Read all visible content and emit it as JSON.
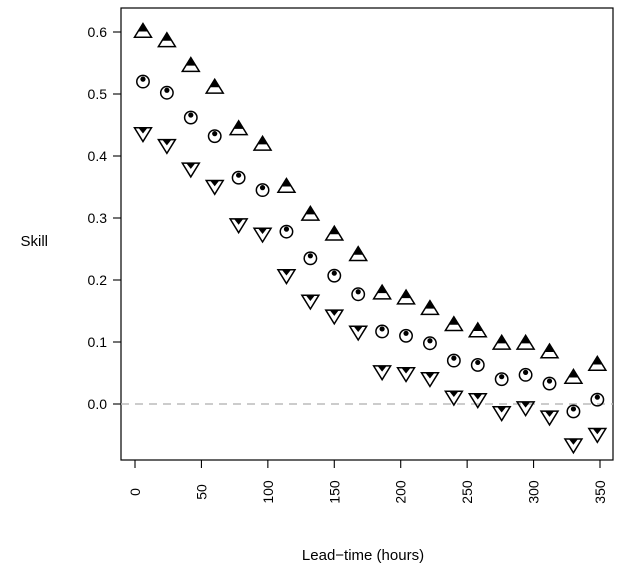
{
  "chart_data": {
    "type": "scatter",
    "xlabel": "Lead−time (hours)",
    "ylabel": "Skill",
    "xlim": [
      -5,
      360
    ],
    "ylim": [
      -0.09,
      0.62
    ],
    "x_ticks": [
      0,
      50,
      100,
      150,
      200,
      250,
      300,
      350
    ],
    "x_tick_labels": [
      "0",
      "50",
      "100",
      "150",
      "200",
      "250",
      "300",
      "350"
    ],
    "y_ticks": [
      0.0,
      0.1,
      0.2,
      0.3,
      0.4,
      0.5,
      0.6
    ],
    "y_tick_labels": [
      "0.0",
      "0.1",
      "0.2",
      "0.3",
      "0.4",
      "0.5",
      "0.6"
    ],
    "reference_line": {
      "y": 0.0,
      "style": "dashed",
      "color": "#bbbbbb"
    },
    "x": [
      6,
      24,
      42,
      60,
      78,
      96,
      114,
      132,
      150,
      168,
      186,
      204,
      222,
      240,
      258,
      276,
      294,
      312,
      330,
      348
    ],
    "series": [
      {
        "marker": "triangle-up",
        "values": [
          0.6,
          0.585,
          0.545,
          0.51,
          0.443,
          0.418,
          0.35,
          0.305,
          0.273,
          0.24,
          0.178,
          0.17,
          0.153,
          0.127,
          0.117,
          0.097,
          0.097,
          0.083,
          0.042,
          0.063
        ]
      },
      {
        "marker": "circle",
        "values": [
          0.52,
          0.502,
          0.462,
          0.432,
          0.365,
          0.345,
          0.278,
          0.235,
          0.207,
          0.177,
          0.117,
          0.11,
          0.098,
          0.07,
          0.063,
          0.04,
          0.047,
          0.033,
          -0.012,
          0.007
        ]
      },
      {
        "marker": "triangle-down",
        "values": [
          0.437,
          0.418,
          0.38,
          0.352,
          0.29,
          0.275,
          0.208,
          0.167,
          0.143,
          0.117,
          0.053,
          0.05,
          0.042,
          0.012,
          0.008,
          -0.013,
          -0.005,
          -0.02,
          -0.065,
          -0.048
        ]
      }
    ]
  }
}
